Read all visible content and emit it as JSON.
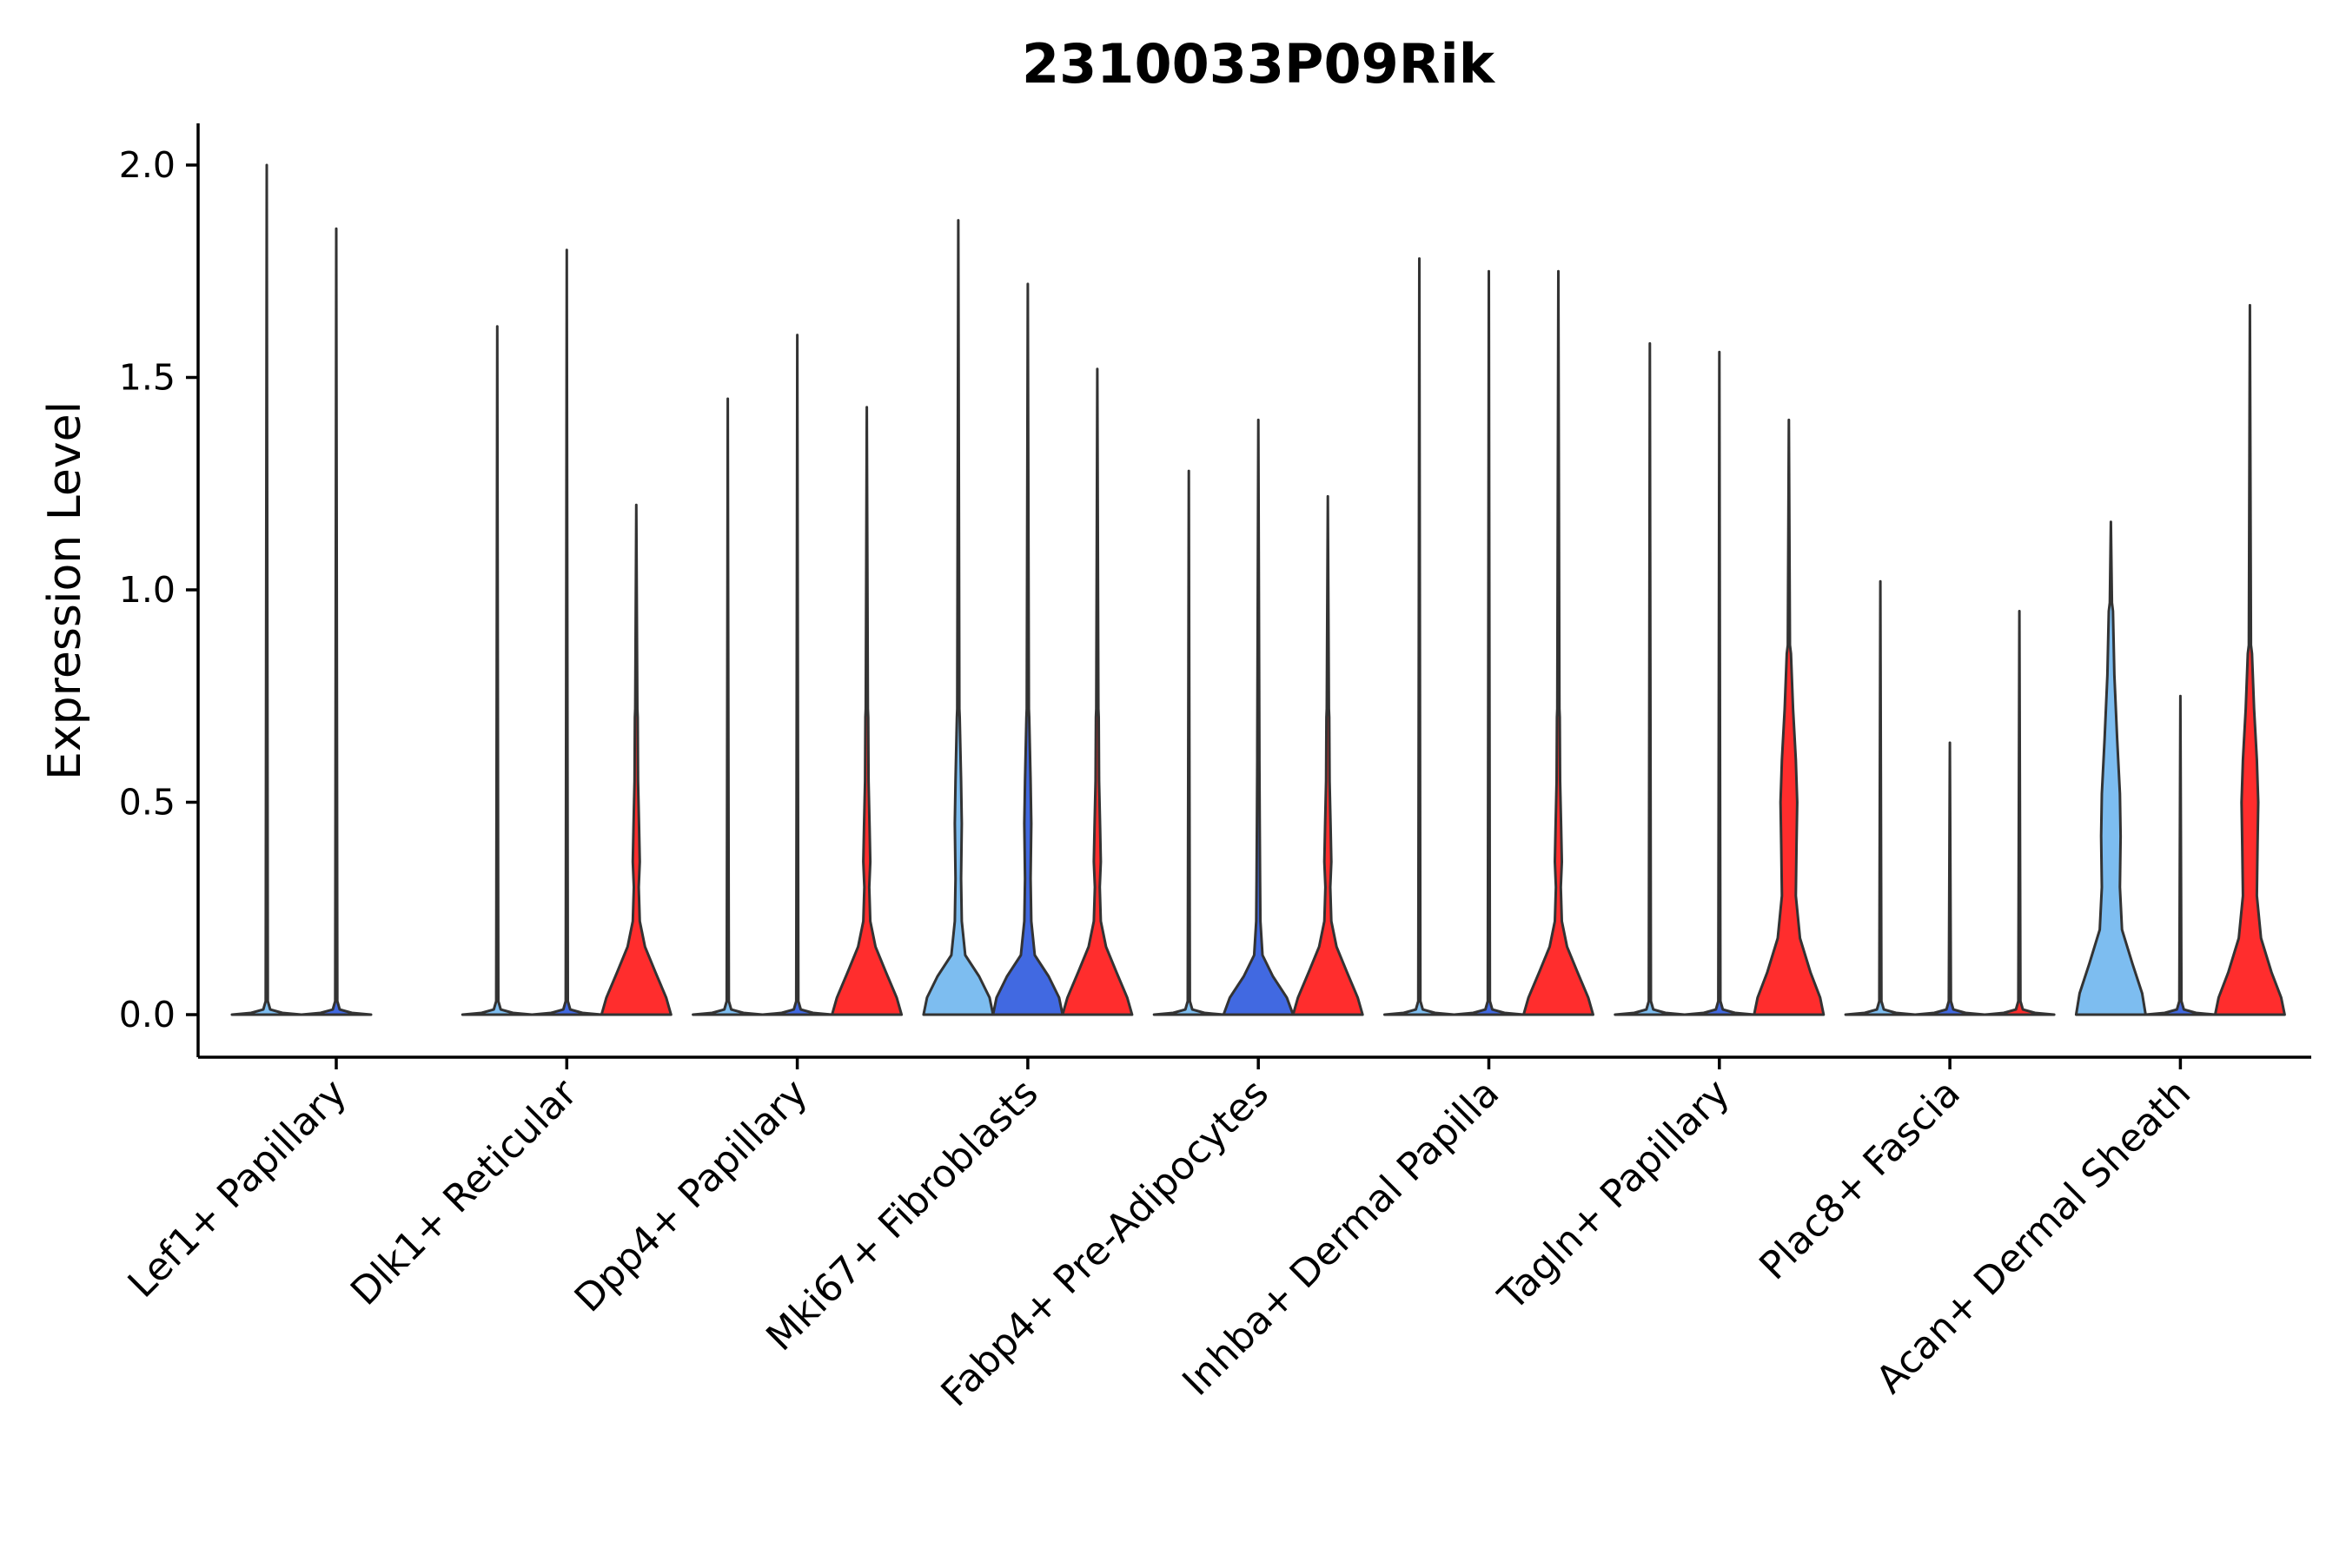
{
  "chart_data": {
    "type": "violin",
    "title": "2310033P09Rik",
    "xlabel": "",
    "ylabel": "Expression Level",
    "ylim": [
      -0.1,
      2.1
    ],
    "yticks": [
      "0.0",
      "0.5",
      "1.0",
      "1.5",
      "2.0"
    ],
    "grid": false,
    "legend": "none",
    "categories": [
      "Lef1+ Papillary",
      "Dlk1+ Reticular",
      "Dpp4+ Papillary",
      "Mki67+ Fibroblasts",
      "Fabp4+ Pre-Adipocytes",
      "Inhba+ Dermal Papilla",
      "Tagln+ Papillary",
      "Plac8+ Fascia",
      "Acan+ Dermal Sheath"
    ],
    "groups": [
      {
        "name": "group-1",
        "color": "#7dbdf0"
      },
      {
        "name": "group-2",
        "color": "#4169e1"
      },
      {
        "name": "group-3",
        "color": "#ff2d2d"
      }
    ],
    "violins": [
      {
        "category": "Lef1+ Papillary",
        "group": 0,
        "max": 2.0,
        "shape": "flat"
      },
      {
        "category": "Lef1+ Papillary",
        "group": 1,
        "max": 1.85,
        "shape": "flat"
      },
      {
        "category": "Dlk1+ Reticular",
        "group": 0,
        "max": 1.62,
        "shape": "flat"
      },
      {
        "category": "Dlk1+ Reticular",
        "group": 1,
        "max": 1.8,
        "shape": "flat"
      },
      {
        "category": "Dlk1+ Reticular",
        "group": 2,
        "max": 1.2,
        "shape": "red"
      },
      {
        "category": "Dpp4+ Papillary",
        "group": 0,
        "max": 1.45,
        "shape": "flat"
      },
      {
        "category": "Dpp4+ Papillary",
        "group": 1,
        "max": 1.6,
        "shape": "flat"
      },
      {
        "category": "Dpp4+ Papillary",
        "group": 2,
        "max": 1.43,
        "shape": "red"
      },
      {
        "category": "Mki67+ Fibroblasts",
        "group": 0,
        "max": 1.87,
        "shape": "blob"
      },
      {
        "category": "Mki67+ Fibroblasts",
        "group": 1,
        "max": 1.72,
        "shape": "blob"
      },
      {
        "category": "Mki67+ Fibroblasts",
        "group": 2,
        "max": 1.52,
        "shape": "red"
      },
      {
        "category": "Fabp4+ Pre-Adipocytes",
        "group": 0,
        "max": 1.28,
        "shape": "flat"
      },
      {
        "category": "Fabp4+ Pre-Adipocytes",
        "group": 1,
        "max": 1.4,
        "shape": "small"
      },
      {
        "category": "Fabp4+ Pre-Adipocytes",
        "group": 2,
        "max": 1.22,
        "shape": "red"
      },
      {
        "category": "Inhba+ Dermal Papilla",
        "group": 0,
        "max": 1.78,
        "shape": "flat"
      },
      {
        "category": "Inhba+ Dermal Papilla",
        "group": 1,
        "max": 1.75,
        "shape": "flat"
      },
      {
        "category": "Inhba+ Dermal Papilla",
        "group": 2,
        "max": 1.75,
        "shape": "red"
      },
      {
        "category": "Tagln+ Papillary",
        "group": 0,
        "max": 1.58,
        "shape": "flat"
      },
      {
        "category": "Tagln+ Papillary",
        "group": 1,
        "max": 1.56,
        "shape": "flat"
      },
      {
        "category": "Tagln+ Papillary",
        "group": 2,
        "max": 1.4,
        "shape": "red-wide"
      },
      {
        "category": "Plac8+ Fascia",
        "group": 0,
        "max": 1.02,
        "shape": "flat"
      },
      {
        "category": "Plac8+ Fascia",
        "group": 1,
        "max": 0.64,
        "shape": "flat"
      },
      {
        "category": "Plac8+ Fascia",
        "group": 2,
        "max": 0.95,
        "shape": "flat"
      },
      {
        "category": "Acan+ Dermal Sheath",
        "group": 0,
        "max": 1.16,
        "shape": "blob-wide"
      },
      {
        "category": "Acan+ Dermal Sheath",
        "group": 1,
        "max": 0.75,
        "shape": "flat"
      },
      {
        "category": "Acan+ Dermal Sheath",
        "group": 2,
        "max": 1.67,
        "shape": "red-wide"
      }
    ]
  }
}
